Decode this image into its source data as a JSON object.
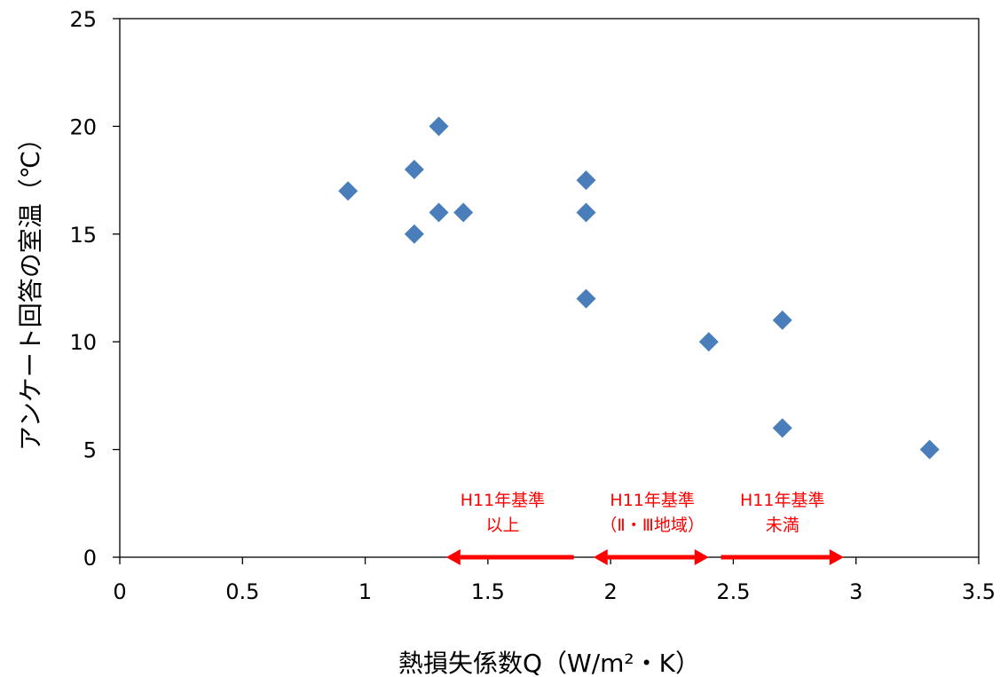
{
  "chart_data": {
    "type": "scatter",
    "title": "",
    "xlabel": "熱損失係数Q（W/m²・K）",
    "ylabel": "アンケート回答の室温（℃）",
    "xlim": [
      0,
      3.5
    ],
    "ylim": [
      0,
      25
    ],
    "xticks": [
      0,
      0.5,
      1,
      1.5,
      2,
      2.5,
      3,
      3.5
    ],
    "xtick_labels": [
      "0",
      "0.5",
      "1",
      "1.5",
      "2",
      "2.5",
      "3",
      "3.5"
    ],
    "yticks": [
      0,
      5,
      10,
      15,
      20,
      25
    ],
    "ytick_labels": [
      "0",
      "5",
      "10",
      "15",
      "20",
      "25"
    ],
    "grid": false,
    "legend": "none",
    "marker": "diamond",
    "marker_color": "#4a7ebb",
    "points": [
      {
        "x": 0.93,
        "y": 17
      },
      {
        "x": 1.2,
        "y": 18
      },
      {
        "x": 1.2,
        "y": 15
      },
      {
        "x": 1.3,
        "y": 20
      },
      {
        "x": 1.3,
        "y": 16
      },
      {
        "x": 1.4,
        "y": 16
      },
      {
        "x": 1.9,
        "y": 17.5
      },
      {
        "x": 1.9,
        "y": 16
      },
      {
        "x": 1.9,
        "y": 12
      },
      {
        "x": 2.4,
        "y": 10
      },
      {
        "x": 2.7,
        "y": 11
      },
      {
        "x": 2.7,
        "y": 6
      },
      {
        "x": 3.3,
        "y": 5
      }
    ],
    "annotations": [
      {
        "lines": [
          "H11年基準",
          "以上"
        ],
        "arrow": "left",
        "x_from": 1.33,
        "x_to": 1.85,
        "y": 0,
        "label_x": 1.56
      },
      {
        "lines": [
          "H11年基準",
          "（Ⅱ・Ⅲ地域）"
        ],
        "arrow": "both",
        "x_from": 1.93,
        "x_to": 2.4,
        "y": 0,
        "label_x": 2.17
      },
      {
        "lines": [
          "H11年基準",
          "未満"
        ],
        "arrow": "right",
        "x_from": 2.45,
        "x_to": 2.95,
        "y": 0,
        "label_x": 2.7
      }
    ],
    "annotation_color": "#ff0000"
  }
}
